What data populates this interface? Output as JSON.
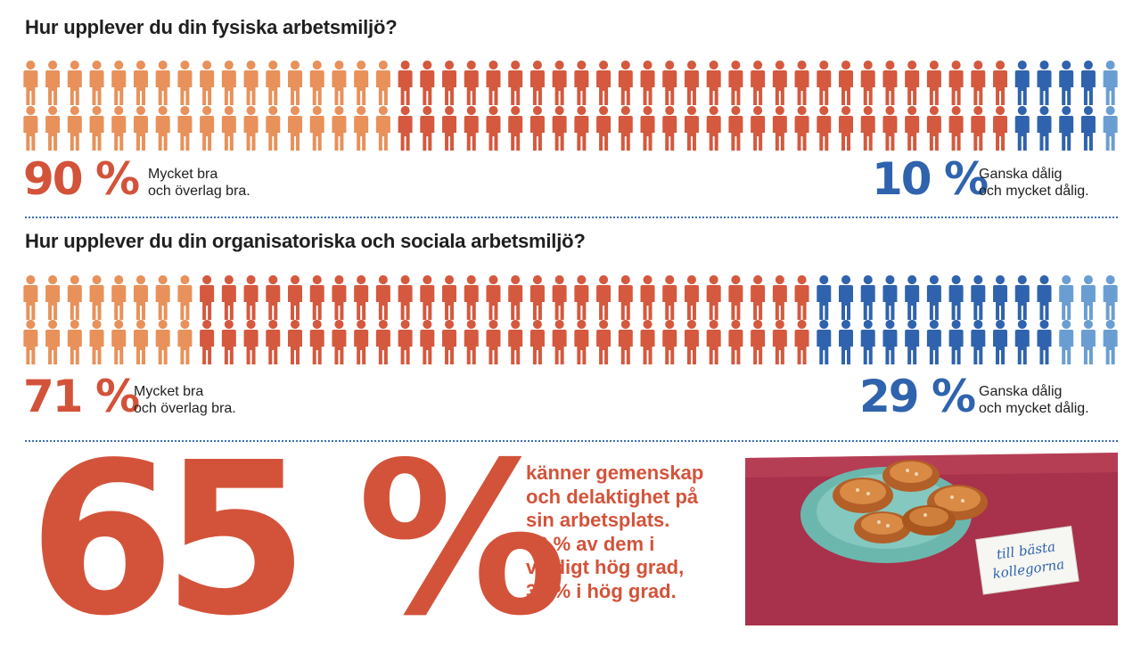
{
  "colors": {
    "orange_light": "#e8915a",
    "orange_red": "#d4593e",
    "blue_dark": "#2f63ad",
    "blue_light": "#6a9ed3",
    "title": "#1f1f1f",
    "accent_red": "#d3533a"
  },
  "icon": "person-icon",
  "chart_data": [
    {
      "type": "pictograph",
      "title": "Hur upplever du din fysiska arbetsmiljö?",
      "rows": 2,
      "per_row": 50,
      "series": [
        {
          "name": "Mycket bra och överlag bra.",
          "value": 90,
          "colors": [
            "#e8915a",
            "#d4593e"
          ],
          "split": 17
        },
        {
          "name": "Ganska dålig och mycket dålig.",
          "value": 10,
          "colors": [
            "#2f63ad",
            "#6a9ed3"
          ],
          "split": 4
        }
      ],
      "left": {
        "percent": "90 %",
        "line1": "Mycket bra",
        "line2": "och överlag bra."
      },
      "right": {
        "percent": "10 %",
        "line1": "Ganska dålig",
        "line2": "och mycket dålig."
      }
    },
    {
      "type": "pictograph",
      "title": "Hur upplever du din organisatoriska och sociala arbetsmiljö?",
      "rows": 2,
      "per_row": 50,
      "series": [
        {
          "name": "Mycket bra och överlag bra.",
          "value": 71,
          "colors": [
            "#e8915a",
            "#d4593e"
          ],
          "split": 8
        },
        {
          "name": "Ganska dålig och mycket dålig.",
          "value": 29,
          "colors": [
            "#2f63ad",
            "#6a9ed3"
          ],
          "split": 11
        }
      ],
      "left": {
        "percent": "71 %",
        "line1": "Mycket bra",
        "line2": "och överlag bra."
      },
      "right": {
        "percent": "29 %",
        "line1": "Ganska dålig",
        "line2": "och mycket dålig."
      }
    }
  ],
  "highlight": {
    "percent": "65 %",
    "lines": [
      "känner gemenskap",
      "och delaktighet på",
      "sin arbetsplats.",
      "28 % av dem i",
      "väldigt hög grad,",
      "37 % i hög grad."
    ]
  },
  "illustration": {
    "note_line1": "till bästa",
    "note_line2": "kollegorna"
  }
}
